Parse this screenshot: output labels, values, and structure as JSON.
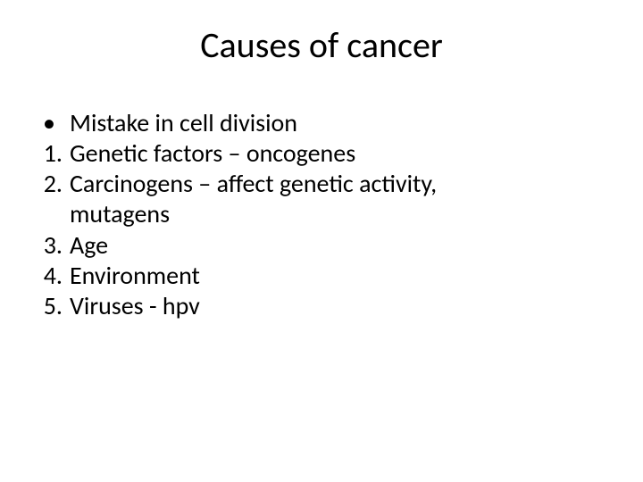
{
  "slide": {
    "title": "Causes of cancer",
    "bullet": {
      "marker": "•",
      "text": "Mistake in cell division"
    },
    "numbered": [
      {
        "marker": "1.",
        "lines": [
          "Genetic factors – oncogenes"
        ]
      },
      {
        "marker": "2.",
        "lines": [
          "Carcinogens – affect genetic activity,",
          "mutagens"
        ]
      },
      {
        "marker": "3.",
        "lines": [
          "Age"
        ]
      },
      {
        "marker": "4.",
        "lines": [
          "Environment"
        ]
      },
      {
        "marker": "5.",
        "lines": [
          "Viruses - hpv"
        ]
      }
    ],
    "style": {
      "title_fontsize": 40,
      "body_fontsize": 28,
      "text_color": "#000000",
      "background_color": "#ffffff",
      "font_family": "Calibri"
    }
  }
}
